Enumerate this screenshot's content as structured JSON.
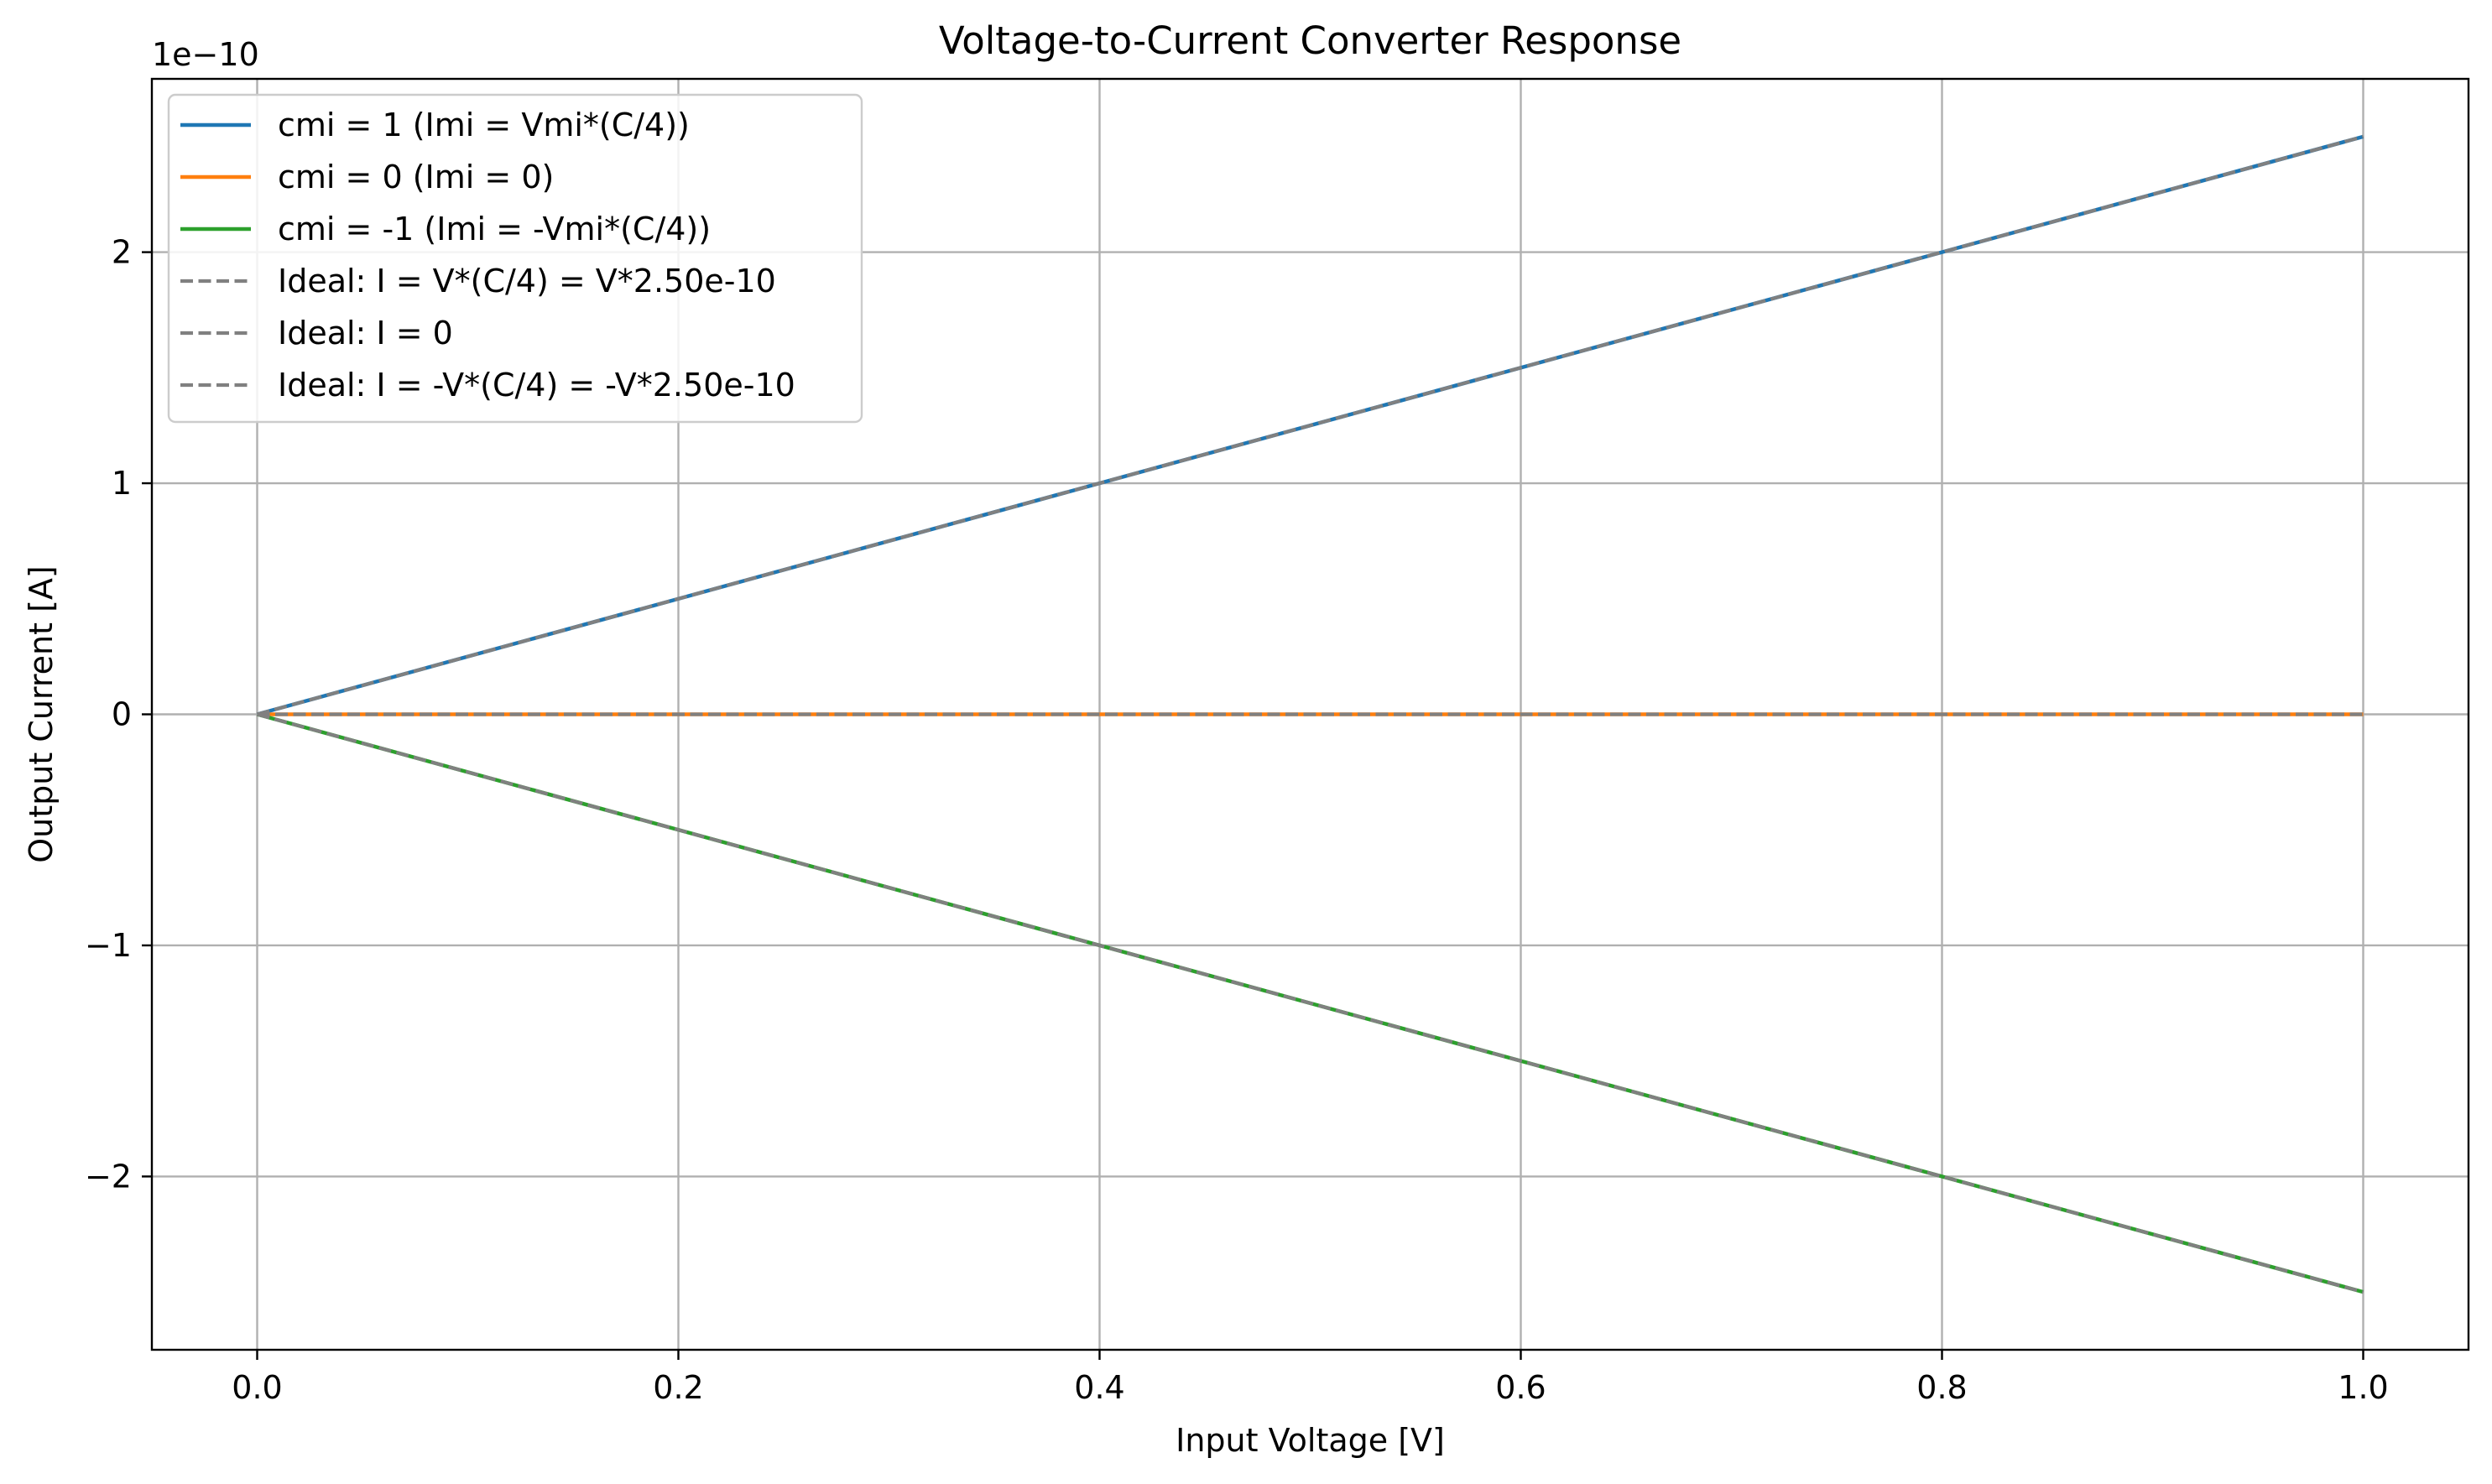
{
  "chart_data": {
    "type": "line",
    "title": "Voltage-to-Current Converter Response",
    "xlabel": "Input Voltage [V]",
    "ylabel": "Output Current [A]",
    "y_offset_label": "1e−10",
    "xlim": [
      -0.05,
      1.05
    ],
    "ylim": [
      -2.75,
      2.75
    ],
    "y_scale_factor": 1e-10,
    "grid": true,
    "legend_position": "upper-left",
    "x_ticks": [
      0.0,
      0.2,
      0.4,
      0.6,
      0.8,
      1.0
    ],
    "x_tick_labels": [
      "0.0",
      "0.2",
      "0.4",
      "0.6",
      "0.8",
      "1.0"
    ],
    "y_ticks": [
      -2,
      -1,
      0,
      1,
      2
    ],
    "y_tick_labels": [
      "−2",
      "−1",
      "0",
      "1",
      "2"
    ],
    "x": [
      0.0,
      1.0
    ],
    "series": [
      {
        "name": "cmi = 1 (Imi = Vmi*(C/4))",
        "values": [
          0.0,
          2.5
        ],
        "color": "#1f77b4",
        "style": "solid"
      },
      {
        "name": "cmi = 0 (Imi = 0)",
        "values": [
          0.0,
          0.0
        ],
        "color": "#ff7f0e",
        "style": "solid"
      },
      {
        "name": "cmi = -1 (Imi = -Vmi*(C/4))",
        "values": [
          0.0,
          -2.5
        ],
        "color": "#2ca02c",
        "style": "solid"
      },
      {
        "name": "Ideal: I = V*(C/4) = V*2.50e-10",
        "values": [
          0.0,
          2.5
        ],
        "color": "#808080",
        "style": "dashed"
      },
      {
        "name": "Ideal: I = 0",
        "values": [
          0.0,
          0.0
        ],
        "color": "#808080",
        "style": "dashed"
      },
      {
        "name": "Ideal: I = -V*(C/4) = -V*2.50e-10",
        "values": [
          0.0,
          -2.5
        ],
        "color": "#808080",
        "style": "dashed"
      }
    ]
  }
}
